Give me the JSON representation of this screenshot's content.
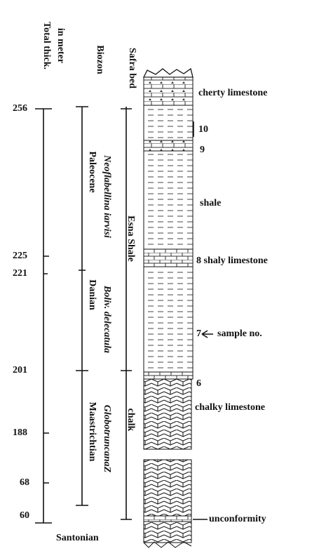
{
  "header": {
    "thickness": "Total thick.",
    "unit": "in meter",
    "biozone": "Biozon",
    "bed": "Safra bed"
  },
  "depths": [
    "256",
    "225",
    "221",
    "201",
    "188",
    "68",
    "60"
  ],
  "stages": [
    "Paleocene",
    "Danian",
    "Maastrichtian"
  ],
  "zones": [
    "Neoflabellina iarvisi",
    "Boliv. delecatula",
    "GlobotruncanaZ"
  ],
  "formations": [
    "Esna Shale",
    "chalk"
  ],
  "lithology": {
    "cherty": "cherty limestone",
    "shale": "shale",
    "shaly": "8 shaly limestone",
    "chalky": "chalky limestone",
    "unconformity": "unconformity"
  },
  "samples": [
    "10",
    "9",
    "7",
    "sample no.",
    "6"
  ],
  "base": "Santonian"
}
